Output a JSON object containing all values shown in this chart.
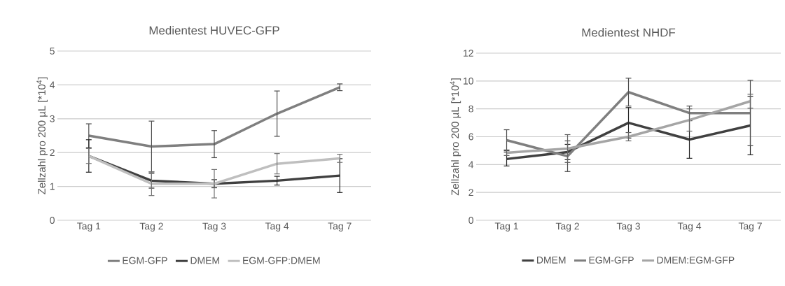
{
  "chart_data": [
    {
      "type": "line",
      "title": "Medientest HUVEC-GFP",
      "ylabel": "Zellzahl pro 200 µL [*10$^{4}$]",
      "categories": [
        "Tag 1",
        "Tag 2",
        "Tag 3",
        "Tag 4",
        "Tag 7"
      ],
      "ylim": [
        0,
        5
      ],
      "yticks": [
        0,
        1,
        2,
        3,
        4,
        5
      ],
      "grid": "y",
      "legend": "bottom",
      "marker": "none",
      "line_style": "solid",
      "series": [
        {
          "name": "EGM-GFP",
          "color": "#7f7f7f",
          "values": [
            2.5,
            2.18,
            2.25,
            3.15,
            3.93
          ],
          "errors": [
            0.35,
            0.75,
            0.4,
            0.67,
            0.1
          ]
        },
        {
          "name": "DMEM",
          "color": "#404040",
          "values": [
            1.9,
            1.17,
            1.08,
            1.17,
            1.32
          ],
          "errors": [
            0.48,
            0.22,
            0.12,
            0.13,
            0.5
          ]
        },
        {
          "name": "EGM-GFP:DMEM",
          "color": "#bfbfbf",
          "values": [
            1.9,
            1.08,
            1.08,
            1.67,
            1.83
          ],
          "errors": [
            0.22,
            0.35,
            0.42,
            0.3,
            0.12
          ]
        }
      ]
    },
    {
      "type": "line",
      "title": "Medientest NHDF",
      "ylabel": "Zellzahl pro 200 µL [*10$^{4}$]",
      "categories": [
        "Tag 1",
        "Tag 2",
        "Tag 3",
        "Tag 4",
        "Tag 7"
      ],
      "ylim": [
        0,
        12
      ],
      "yticks": [
        0,
        2,
        4,
        6,
        8,
        10,
        12
      ],
      "grid": "y",
      "legend": "bottom",
      "marker": "none",
      "line_style": "solid",
      "series": [
        {
          "name": "DMEM",
          "color": "#404040",
          "values": [
            4.4,
            4.9,
            7.0,
            5.8,
            6.8
          ],
          "errors": [
            0.5,
            0.55,
            1.1,
            1.35,
            2.1
          ]
        },
        {
          "name": "EGM-GFP",
          "color": "#7f7f7f",
          "values": [
            5.75,
            4.6,
            9.2,
            7.7,
            7.7
          ],
          "errors": [
            0.75,
            1.1,
            1.0,
            0.5,
            2.35
          ]
        },
        {
          "name": "DMEM:EGM-GFP",
          "color": "#a5a5a5",
          "values": [
            4.85,
            5.15,
            6.0,
            7.2,
            8.55
          ],
          "errors": [
            0.2,
            1.0,
            0.3,
            0.8,
            0.5
          ]
        }
      ]
    }
  ]
}
